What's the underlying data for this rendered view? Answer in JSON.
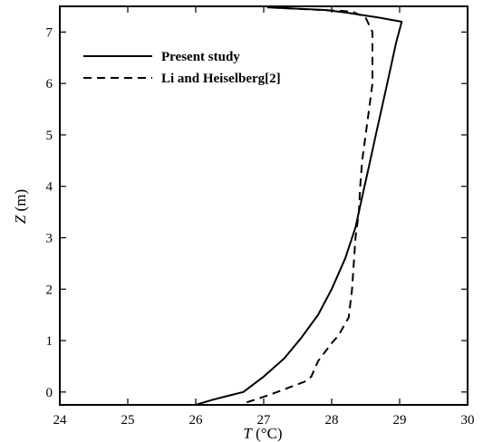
{
  "chart_data": {
    "type": "line",
    "xlabel_symbol": "T",
    "xlabel_unit": " (°C)",
    "ylabel_symbol": "Z",
    "ylabel_unit": " (m)",
    "xlim": [
      24,
      30
    ],
    "ylim": [
      -0.25,
      7.5
    ],
    "xticks": [
      24,
      25,
      26,
      27,
      28,
      29,
      30
    ],
    "yticks": [
      0,
      1,
      2,
      3,
      4,
      5,
      6,
      7
    ],
    "grid": false,
    "legend_position": "top-left",
    "series": [
      {
        "name": "Present study",
        "style": "solid",
        "color": "#000000",
        "x": [
          26.0,
          26.25,
          26.7,
          27.0,
          27.3,
          27.55,
          27.8,
          28.0,
          28.2,
          28.35,
          28.45,
          28.55,
          28.65,
          28.75,
          28.85,
          28.95,
          29.03,
          28.7,
          28.2,
          27.9,
          27.05
        ],
        "y": [
          -0.25,
          -0.15,
          0.0,
          0.3,
          0.65,
          1.05,
          1.5,
          2.0,
          2.6,
          3.2,
          3.8,
          4.4,
          5.0,
          5.6,
          6.2,
          6.8,
          7.2,
          7.28,
          7.38,
          7.43,
          7.48
        ]
      },
      {
        "name": "Li and Heiselberg[2]",
        "style": "dashed",
        "color": "#000000",
        "x": [
          26.75,
          27.1,
          27.4,
          27.6,
          27.7,
          27.8,
          28.0,
          28.1,
          28.25,
          28.3,
          28.35,
          28.4,
          28.42,
          28.45,
          28.5,
          28.55,
          28.6,
          28.6,
          28.5,
          28.3,
          27.05
        ],
        "y": [
          -0.2,
          -0.05,
          0.1,
          0.2,
          0.3,
          0.6,
          0.95,
          1.1,
          1.45,
          2.0,
          3.0,
          3.5,
          4.0,
          4.5,
          5.0,
          5.5,
          6.0,
          7.0,
          7.28,
          7.4,
          7.48
        ]
      }
    ]
  }
}
